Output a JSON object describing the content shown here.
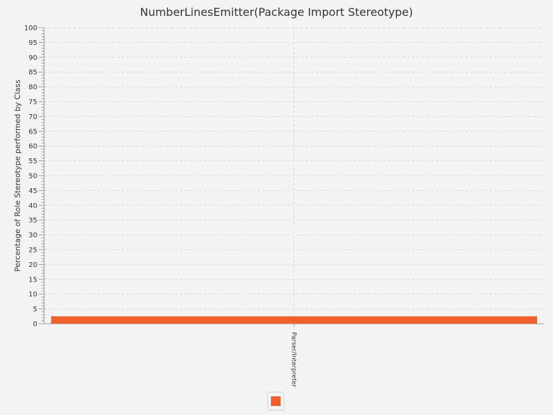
{
  "chart_data": {
    "type": "bar",
    "title": "NumberLinesEmitter(Package Import Stereotype)",
    "xlabel": "",
    "ylabel": "Percentage of Role Stereotype performed by Class",
    "categories": [
      "Parser/Interpreter"
    ],
    "series": [
      {
        "values": [
          2.5
        ],
        "color": "#f0602e"
      }
    ],
    "ylim": [
      0,
      100
    ],
    "yticks": [
      0,
      5,
      10,
      15,
      20,
      25,
      30,
      35,
      40,
      45,
      50,
      55,
      60,
      65,
      70,
      75,
      80,
      85,
      90,
      95,
      100
    ],
    "ytick_labels": [
      "0",
      "5",
      "10",
      "15",
      "20",
      "25",
      "30",
      "35",
      "40",
      "45",
      "50",
      "55",
      "60",
      "65",
      "70",
      "75",
      "80",
      "85",
      "90",
      "95",
      "100"
    ],
    "y_minor_step": 1,
    "grid": true,
    "legend_position": "bottom"
  }
}
